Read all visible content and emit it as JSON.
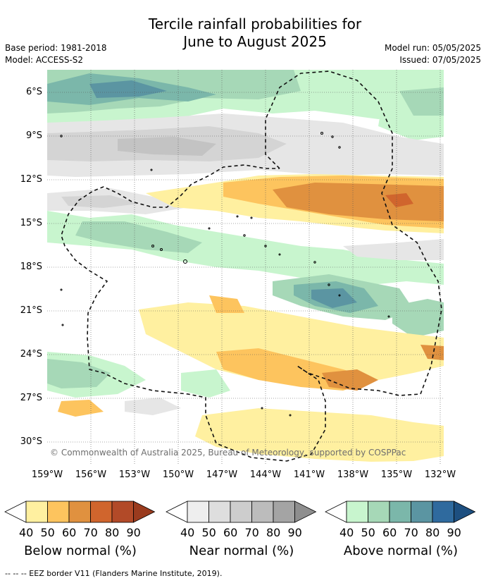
{
  "header": {
    "title_line1": "Tercile rainfall probabilities for",
    "title_line2": "June to August 2025",
    "base_period": "Base period: 1981-2018",
    "model": "Model: ACCESS-S2",
    "model_run": "Model run: 05/05/2025",
    "issued": "Issued: 07/05/2025"
  },
  "map": {
    "latitude_labels": [
      "6°S",
      "9°S",
      "12°S",
      "15°S",
      "18°S",
      "21°S",
      "24°S",
      "27°S",
      "30°S"
    ],
    "longitude_labels": [
      "159°W",
      "156°W",
      "153°W",
      "150°W",
      "147°W",
      "144°W",
      "141°W",
      "138°W",
      "135°W",
      "132°W"
    ],
    "copyright": "© Commonwealth of Australia 2025, Bureau of Meteorology, supported by COSPPac",
    "colors": {
      "below": [
        "#fff0a0",
        "#fdc45e",
        "#e0913f",
        "#d0652d",
        "#b24a28"
      ],
      "near": [
        "#e6e6e6",
        "#d4d4d4",
        "#c3c3c3",
        "#b0b0b0",
        "#9f9f9f"
      ],
      "above": [
        "#c8f5ce",
        "#a6d8b7",
        "#7bb7aa",
        "#5b95a2",
        "#2f6a9e"
      ]
    }
  },
  "legend": {
    "bars": [
      {
        "title": "Below normal (%)",
        "ticks": [
          "40",
          "50",
          "60",
          "70",
          "80",
          "90"
        ],
        "colors": [
          "#fff0a0",
          "#fdc45e",
          "#e0913f",
          "#d0652d",
          "#b24a28",
          "#9a3b1e"
        ]
      },
      {
        "title": "Near normal (%)",
        "ticks": [
          "40",
          "50",
          "60",
          "70",
          "80",
          "90"
        ],
        "colors": [
          "#eeeeee",
          "#dedede",
          "#cdcdcd",
          "#bcbcbc",
          "#a4a4a4",
          "#8e8e8e"
        ]
      },
      {
        "title": "Above normal (%)",
        "ticks": [
          "40",
          "50",
          "60",
          "70",
          "80",
          "90"
        ],
        "colors": [
          "#c8f5ce",
          "#a6d8b7",
          "#7bb7aa",
          "#5b95a2",
          "#2f6a9e",
          "#1d4f80"
        ]
      }
    ]
  },
  "footer": {
    "eez_text": "--  --  -- EEZ border V11 (Flanders Marine Institute, 2019)."
  }
}
